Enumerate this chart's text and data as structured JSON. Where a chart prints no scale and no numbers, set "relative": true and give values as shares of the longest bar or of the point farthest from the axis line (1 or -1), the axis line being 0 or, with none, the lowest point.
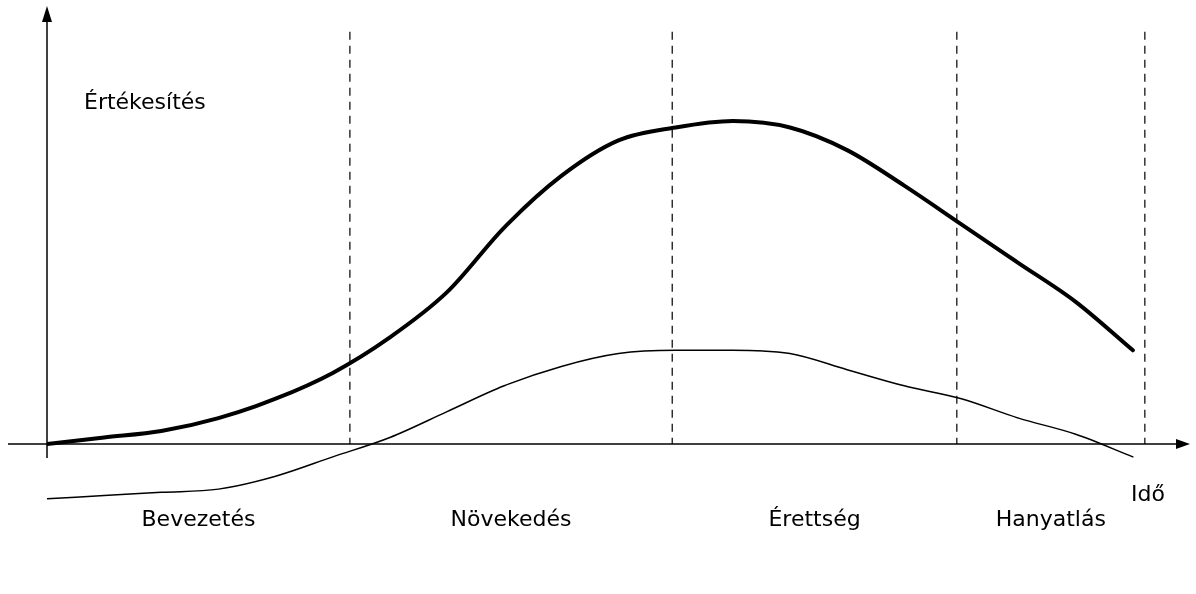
{
  "chart_data": {
    "type": "line",
    "relative": true,
    "xlabel": "Idő",
    "ylabel": "Értékesítés",
    "legend": false,
    "marker": "none",
    "categories": [
      null,
      null,
      null,
      null,
      null,
      null,
      null,
      null,
      null,
      null,
      null,
      null,
      null,
      null,
      null,
      null,
      null,
      null,
      null,
      null
    ],
    "series": [
      {
        "color": "#000000",
        "values": [
          0,
          0.02,
          0.04,
          0.08,
          0.14,
          0.22,
          0.33,
          0.47,
          0.67,
          0.83,
          0.94,
          0.98,
          1.0,
          0.98,
          0.91,
          0.8,
          0.68,
          0.56,
          0.44,
          0.29
        ]
      },
      {
        "color": "#000000",
        "values": [
          -0.17,
          -0.16,
          -0.15,
          -0.14,
          -0.1,
          -0.04,
          0.02,
          0.1,
          0.18,
          0.24,
          0.28,
          0.29,
          0.29,
          0.28,
          0.23,
          0.18,
          0.14,
          0.08,
          0.03,
          -0.04
        ]
      }
    ],
    "annotations": [
      "Bevezetés",
      "Növekedés",
      "Érettség",
      "Hanyatlás"
    ]
  }
}
